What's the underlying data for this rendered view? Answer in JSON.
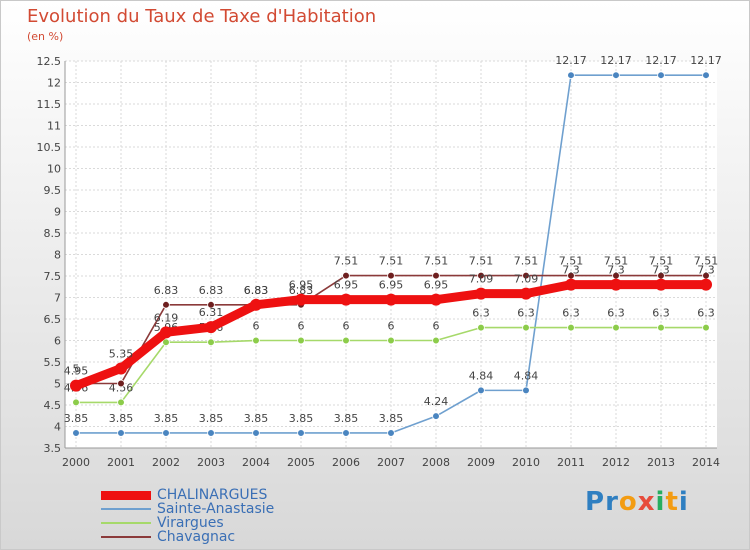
{
  "header": {
    "title": "Evolution du Taux de Taxe d'Habitation",
    "subtitle": "(en %)"
  },
  "chart_data": {
    "type": "line",
    "x": [
      "2000",
      "2001",
      "2002",
      "2003",
      "2004",
      "2005",
      "2006",
      "2007",
      "2008",
      "2009",
      "2010",
      "2011",
      "2012",
      "2013",
      "2014"
    ],
    "ylim": [
      3.5,
      12.5
    ],
    "yticks": [
      "3.5",
      "4",
      "4.5",
      "5",
      "5.5",
      "6",
      "6.5",
      "7",
      "7.5",
      "8",
      "8.5",
      "9",
      "9.5",
      "10",
      "10.5",
      "11",
      "11.5",
      "12",
      "12.5"
    ],
    "grid": true,
    "legend_position": "bottom-left",
    "series": [
      {
        "name": "Sainte-Anastasie",
        "color": "#6fa0cf",
        "marker": "#4a85c0",
        "values": [
          3.85,
          3.85,
          3.85,
          3.85,
          3.85,
          3.85,
          3.85,
          3.85,
          4.24,
          4.84,
          4.84,
          12.17,
          12.17,
          12.17,
          12.17
        ],
        "labels": [
          "3.85",
          "3.85",
          "3.85",
          "3.85",
          "3.85",
          "3.85",
          "3.85",
          "3.85",
          "4.24",
          "4.84",
          "4.84",
          "12.17",
          "12.17",
          "12.17",
          "12.17"
        ]
      },
      {
        "name": "Virargues",
        "color": "#a6d96a",
        "marker": "#8ccc4a",
        "values": [
          4.56,
          4.56,
          5.96,
          5.96,
          6,
          6,
          6,
          6,
          6,
          6.3,
          6.3,
          6.3,
          6.3,
          6.3,
          6.3
        ],
        "labels": [
          "4.56",
          "4.56",
          "5.96",
          "5.96",
          "6",
          "6",
          "6",
          "6",
          "6",
          "6.3",
          "6.3",
          "6.3",
          "6.3",
          "6.3",
          "6.3"
        ]
      },
      {
        "name": "Chavagnac",
        "color": "#8b3a3a",
        "marker": "#6e1f1f",
        "values": [
          5,
          5,
          6.83,
          6.83,
          6.83,
          6.83,
          7.51,
          7.51,
          7.51,
          7.51,
          7.51,
          7.51,
          7.51,
          7.51,
          7.51
        ],
        "labels": [
          "5",
          "5",
          "6.83",
          "6.83",
          "6.83",
          "6.83",
          "7.51",
          "7.51",
          "7.51",
          "7.51",
          "7.51",
          "7.51",
          "7.51",
          "7.51",
          "7.51"
        ]
      },
      {
        "name": "CHALINARGUES",
        "color": "#ee1111",
        "marker": "#ee1111",
        "values": [
          4.95,
          5.35,
          6.19,
          6.31,
          6.83,
          6.95,
          6.95,
          6.95,
          6.95,
          7.09,
          7.09,
          7.3,
          7.3,
          7.3,
          7.3
        ],
        "labels": [
          "4.95",
          "5.35",
          "6.19",
          "6.31",
          "6.83",
          "6.95",
          "6.95",
          "6.95",
          "6.95",
          "7.09",
          "7.09",
          "7.3",
          "7.3",
          "7.3",
          "7.3"
        ]
      }
    ]
  },
  "legend": {
    "items": [
      {
        "name": "CHALINARGUES",
        "color": "#ee1111"
      },
      {
        "name": "Sainte-Anastasie",
        "color": "#6fa0cf"
      },
      {
        "name": "Virargues",
        "color": "#a6d96a"
      },
      {
        "name": "Chavagnac",
        "color": "#8b3a3a"
      }
    ]
  },
  "logo": {
    "text": "Proxiti",
    "letters": [
      {
        "char": "P",
        "color": "#2f7fc1"
      },
      {
        "char": "r",
        "color": "#2f7fc1"
      },
      {
        "char": "o",
        "color": "#f39c12"
      },
      {
        "char": "x",
        "color": "#e74c3c"
      },
      {
        "char": "i",
        "color": "#27ae60"
      },
      {
        "char": "t",
        "color": "#f39c12"
      },
      {
        "char": "i",
        "color": "#2f7fc1"
      }
    ]
  }
}
